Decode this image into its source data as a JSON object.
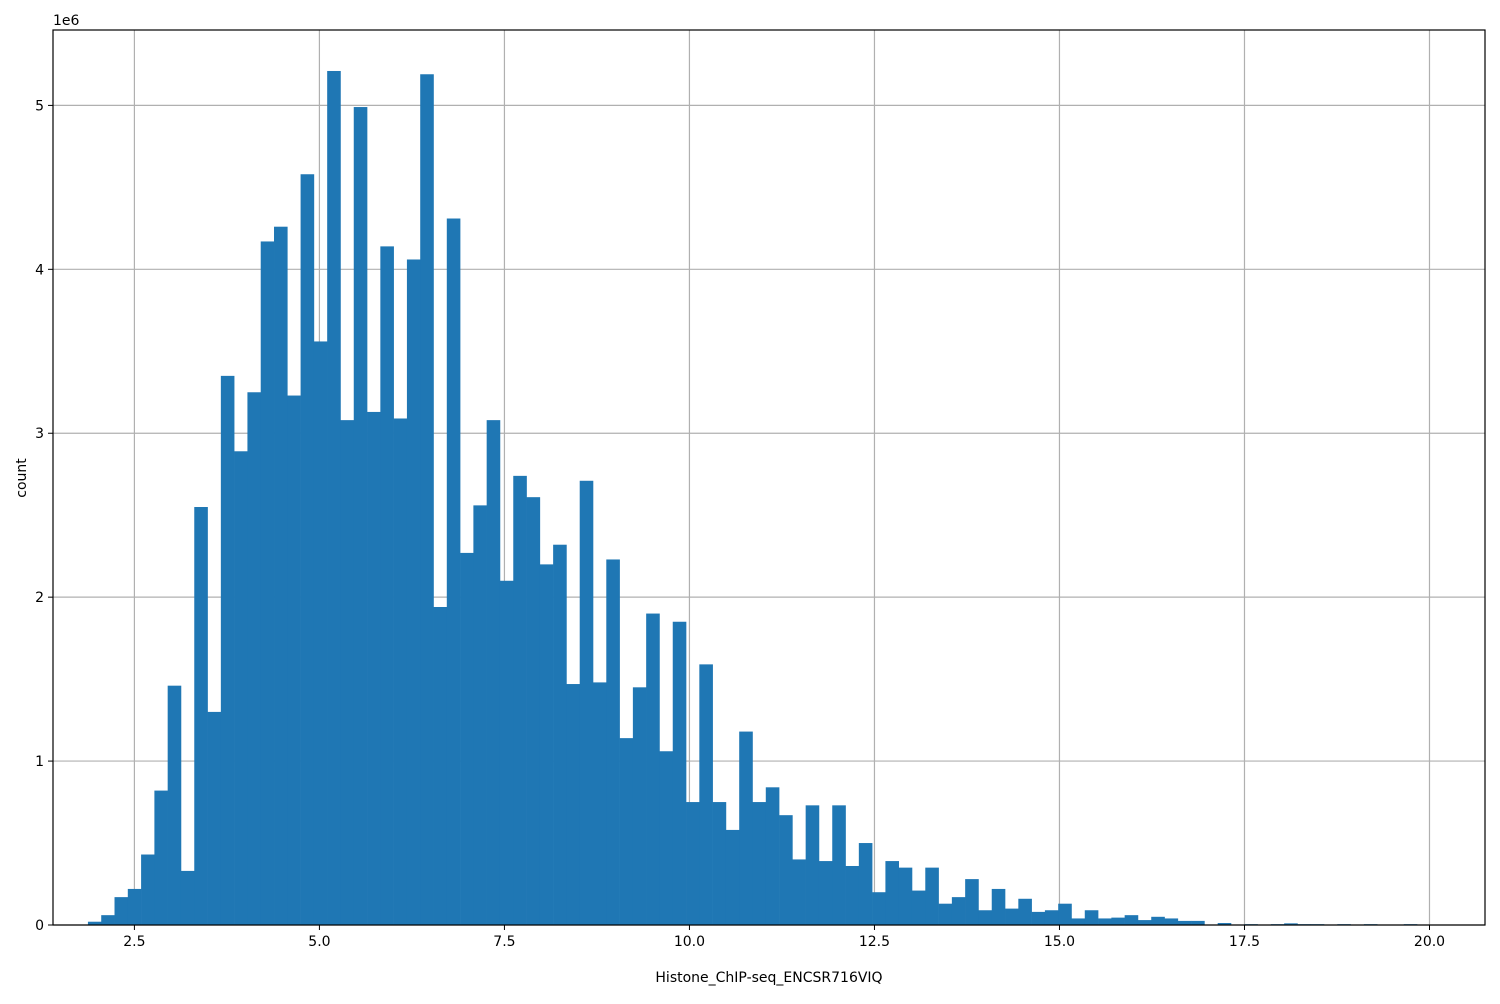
{
  "chart_data": {
    "type": "bar",
    "subtype": "histogram",
    "title": "",
    "xlabel": "Histone_ChIP-seq_ENCSR716VIQ",
    "ylabel": "count",
    "y_offset_label": "1e6",
    "xlim": [
      1.4,
      20.75
    ],
    "ylim": [
      0,
      5.46
    ],
    "y_scale_multiplier": 1000000,
    "grid": true,
    "legend": null,
    "bar_color": "#1f77b4",
    "grid_color": "#b0b0b0",
    "x_ticks": [
      "2.5",
      "5.0",
      "7.5",
      "10.0",
      "12.5",
      "15.0",
      "17.5",
      "20.0"
    ],
    "x_tick_values": [
      2.5,
      5.0,
      7.5,
      10.0,
      12.5,
      15.0,
      17.5,
      20.0
    ],
    "y_ticks": [
      "0",
      "1",
      "2",
      "3",
      "4",
      "5"
    ],
    "y_tick_values": [
      0,
      1,
      2,
      3,
      4,
      5
    ],
    "bin_start": 1.872,
    "bin_width": 0.1796,
    "values": [
      0.02,
      0.06,
      0.17,
      0.22,
      0.43,
      0.82,
      1.46,
      0.33,
      2.55,
      1.3,
      3.35,
      2.89,
      3.25,
      4.17,
      4.26,
      3.23,
      4.58,
      3.56,
      5.21,
      3.08,
      4.99,
      3.13,
      4.14,
      3.09,
      4.06,
      5.19,
      1.94,
      4.31,
      2.27,
      2.56,
      3.08,
      2.1,
      2.74,
      2.61,
      2.2,
      2.32,
      1.47,
      2.71,
      1.48,
      2.23,
      1.14,
      1.45,
      1.9,
      1.06,
      1.85,
      0.75,
      1.59,
      0.75,
      0.58,
      1.18,
      0.75,
      0.84,
      0.67,
      0.4,
      0.73,
      0.39,
      0.73,
      0.36,
      0.5,
      0.2,
      0.39,
      0.35,
      0.21,
      0.35,
      0.13,
      0.17,
      0.28,
      0.09,
      0.22,
      0.1,
      0.16,
      0.08,
      0.09,
      0.13,
      0.04,
      0.09,
      0.04,
      0.045,
      0.06,
      0.03,
      0.05,
      0.04,
      0.025,
      0.025,
      0.0,
      0.012,
      0.0,
      0.005,
      0.0,
      0.005,
      0.01,
      0.005,
      0.005,
      0.0,
      0.005,
      0.0,
      0.005,
      0.0,
      0.0,
      0.005
    ]
  }
}
